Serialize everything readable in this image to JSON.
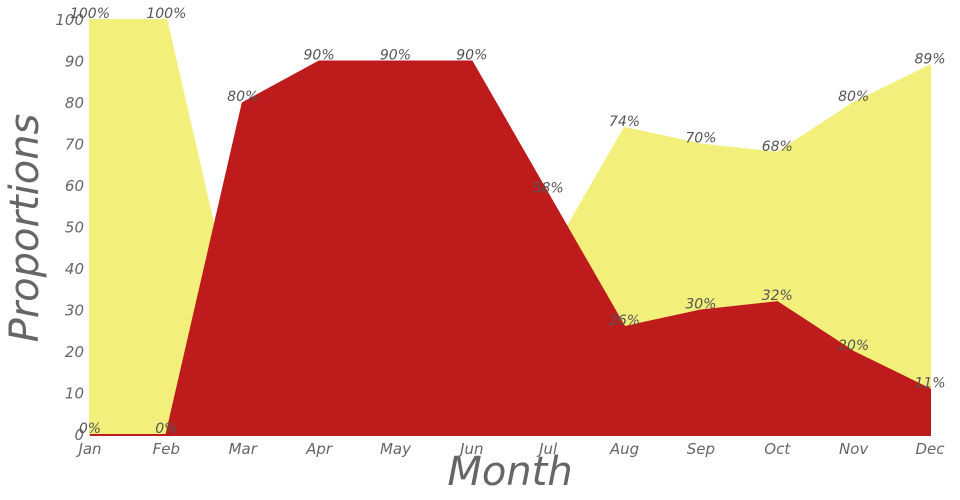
{
  "chart_data": {
    "type": "area",
    "title": "",
    "xlabel": "Month",
    "ylabel": "Proportions",
    "ylim": [
      0,
      100
    ],
    "yticks": [
      0,
      10,
      20,
      30,
      40,
      50,
      60,
      70,
      80,
      90,
      100
    ],
    "grid": false,
    "legend": "none",
    "categories": [
      "Jan",
      "Feb",
      "Mar",
      "Apr",
      "May",
      "Jun",
      "Jul",
      "Aug",
      "Sep",
      "Oct",
      "Nov",
      "Dec"
    ],
    "series": [
      {
        "color": "#f2ef7b",
        "values": [
          100,
          100,
          20,
          10,
          10,
          10,
          42,
          74,
          70,
          68,
          80,
          89
        ],
        "labels": [
          "100%",
          "100%",
          "",
          "",
          "",
          "",
          "",
          "74%",
          "70%",
          "68%",
          "80%",
          "89%"
        ]
      },
      {
        "color": "#be1c1c",
        "values": [
          0,
          0,
          80,
          90,
          90,
          90,
          58,
          26,
          30,
          32,
          20,
          11
        ],
        "labels": [
          "0%",
          "0%",
          "80%",
          "90%",
          "90%",
          "90%",
          "58%",
          "26%",
          "30%",
          "32%",
          "20%",
          "11%"
        ]
      }
    ]
  }
}
